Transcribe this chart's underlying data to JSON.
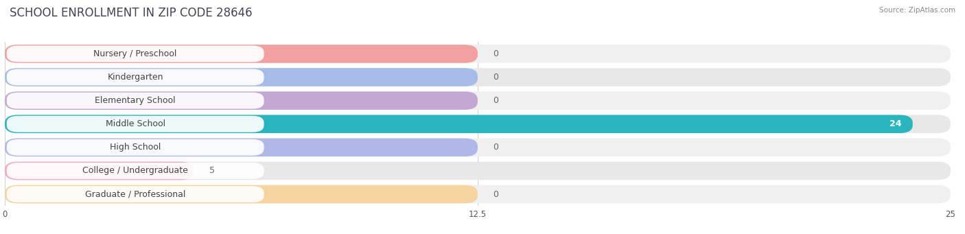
{
  "title": "SCHOOL ENROLLMENT IN ZIP CODE 28646",
  "source": "Source: ZipAtlas.com",
  "categories": [
    "Nursery / Preschool",
    "Kindergarten",
    "Elementary School",
    "Middle School",
    "High School",
    "College / Undergraduate",
    "Graduate / Professional"
  ],
  "values": [
    0,
    0,
    0,
    24,
    0,
    5,
    0
  ],
  "bar_colors": [
    "#f2a0a0",
    "#a8bce8",
    "#c4a8d4",
    "#2ab5be",
    "#b0b8e8",
    "#f4a8c4",
    "#f5d4a0"
  ],
  "row_bg_light": "#f5f5f5",
  "row_bg_dark": "#ebebeb",
  "xlim": [
    0,
    25
  ],
  "xticks": [
    0,
    12.5,
    25
  ],
  "title_fontsize": 12,
  "label_fontsize": 9,
  "value_label_color_default": "#666666",
  "value_label_color_bar": "#ffffff",
  "background_color": "#ffffff",
  "zero_bar_width": 12.5,
  "col5_bar_width": 5
}
